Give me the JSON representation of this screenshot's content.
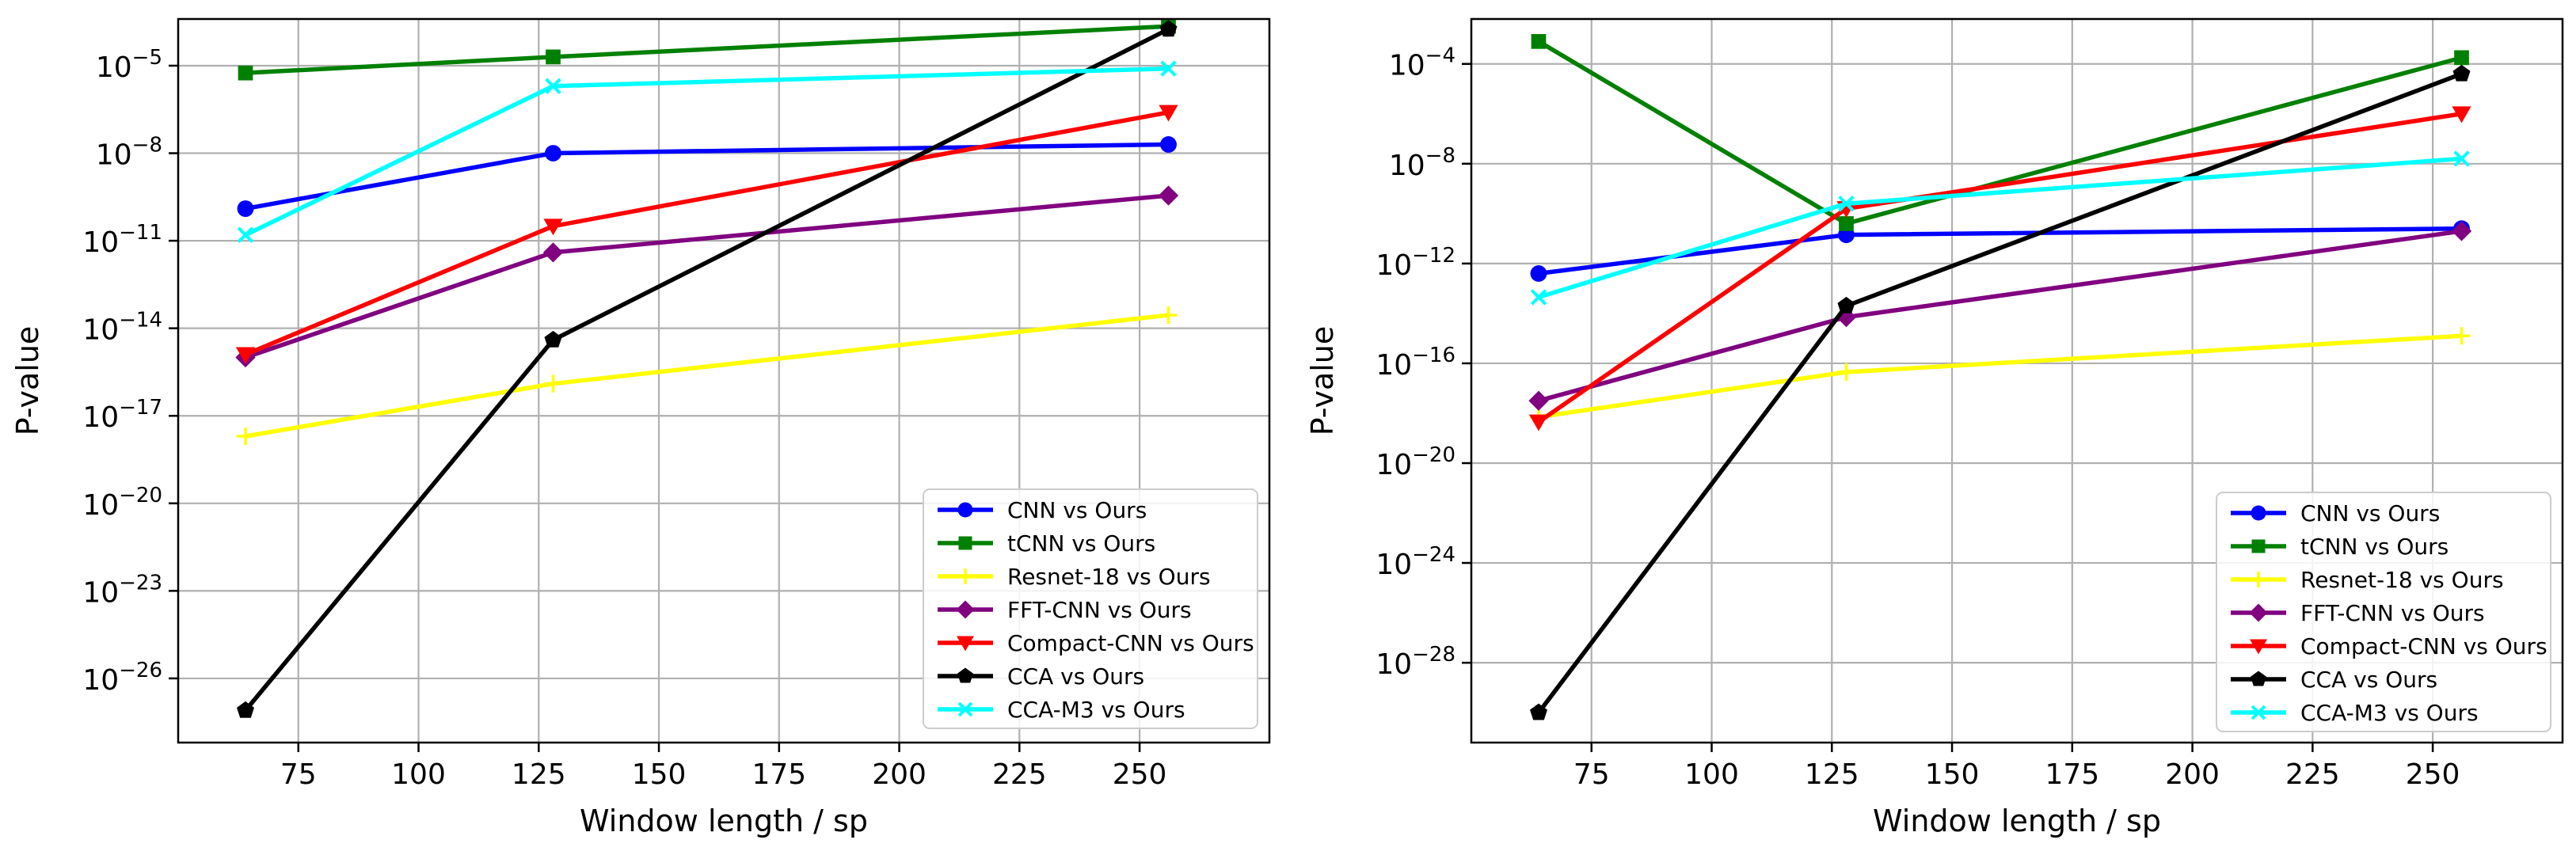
{
  "chart_data": [
    {
      "type": "line",
      "title": "",
      "xlabel": "Window length / sp",
      "ylabel": "P-value",
      "yscale": "log",
      "xlim": [
        50,
        277
      ],
      "ylim_exp": [
        -28.2,
        -3.4
      ],
      "grid": true,
      "legend_position": "bottom-right",
      "x": [
        64,
        128,
        256
      ],
      "xticks": [
        75,
        100,
        125,
        150,
        175,
        200,
        225,
        250
      ],
      "xtick_labels": [
        "75",
        "100",
        "125",
        "150",
        "175",
        "200",
        "225",
        "250"
      ],
      "yticks_exp": [
        -5,
        -8,
        -11,
        -14,
        -17,
        -20,
        -23,
        -26
      ],
      "ytick_base": "10",
      "ytick_labels": [
        "−5",
        "−8",
        "−11",
        "−14",
        "−17",
        "−20",
        "−23",
        "−26"
      ],
      "series": [
        {
          "name": "CNN vs Ours",
          "color": "#0000ff",
          "marker": "circle",
          "values_exp": [
            -9.9,
            -8.0,
            -7.7
          ]
        },
        {
          "name": "tCNN vs Ours",
          "color": "#008000",
          "marker": "square",
          "values_exp": [
            -5.25,
            -4.7,
            -3.65
          ]
        },
        {
          "name": "Resnet-18 vs Ours",
          "color": "#ffff00",
          "marker": "plus",
          "values_exp": [
            -17.7,
            -15.9,
            -13.55
          ]
        },
        {
          "name": "FFT-CNN vs Ours",
          "color": "#800080",
          "marker": "diamond",
          "values_exp": [
            -15.0,
            -11.4,
            -9.45
          ]
        },
        {
          "name": "Compact-CNN vs Ours",
          "color": "#ff0000",
          "marker": "triangle-down",
          "values_exp": [
            -14.9,
            -10.5,
            -6.6
          ]
        },
        {
          "name": "CCA vs Ours",
          "color": "#000000",
          "marker": "pentagon",
          "values_exp": [
            -27.1,
            -14.4,
            -3.75
          ]
        },
        {
          "name": "CCA-M3 vs Ours",
          "color": "#00ffff",
          "marker": "x",
          "values_exp": [
            -10.8,
            -5.7,
            -5.1
          ]
        }
      ]
    },
    {
      "type": "line",
      "title": "",
      "xlabel": "Window length / sp",
      "ylabel": "P-value",
      "yscale": "log",
      "xlim": [
        50,
        277
      ],
      "ylim_exp": [
        -31.2,
        -2.2
      ],
      "grid": true,
      "legend_position": "bottom-right",
      "x": [
        64,
        128,
        256
      ],
      "xticks": [
        75,
        100,
        125,
        150,
        175,
        200,
        225,
        250
      ],
      "xtick_labels": [
        "75",
        "100",
        "125",
        "150",
        "175",
        "200",
        "225",
        "250"
      ],
      "yticks_exp": [
        -4,
        -8,
        -12,
        -16,
        -20,
        -24,
        -28
      ],
      "ytick_base": "10",
      "ytick_labels": [
        "−4",
        "−8",
        "−12",
        "−16",
        "−20",
        "−24",
        "−28"
      ],
      "series": [
        {
          "name": "CNN vs Ours",
          "color": "#0000ff",
          "marker": "circle",
          "values_exp": [
            -12.4,
            -10.85,
            -10.6
          ]
        },
        {
          "name": "tCNN vs Ours",
          "color": "#008000",
          "marker": "square",
          "values_exp": [
            -3.1,
            -10.4,
            -3.75
          ]
        },
        {
          "name": "Resnet-18 vs Ours",
          "color": "#ffff00",
          "marker": "plus",
          "values_exp": [
            -18.15,
            -16.35,
            -14.9
          ]
        },
        {
          "name": "FFT-CNN vs Ours",
          "color": "#800080",
          "marker": "diamond",
          "values_exp": [
            -17.5,
            -14.15,
            -10.7
          ]
        },
        {
          "name": "Compact-CNN vs Ours",
          "color": "#ff0000",
          "marker": "triangle-down",
          "values_exp": [
            -18.35,
            -9.8,
            -6.0
          ]
        },
        {
          "name": "CCA vs Ours",
          "color": "#000000",
          "marker": "pentagon",
          "values_exp": [
            -30.0,
            -13.7,
            -4.4
          ]
        },
        {
          "name": "CCA-M3 vs Ours",
          "color": "#00ffff",
          "marker": "x",
          "values_exp": [
            -13.35,
            -9.6,
            -7.8
          ]
        }
      ]
    }
  ]
}
